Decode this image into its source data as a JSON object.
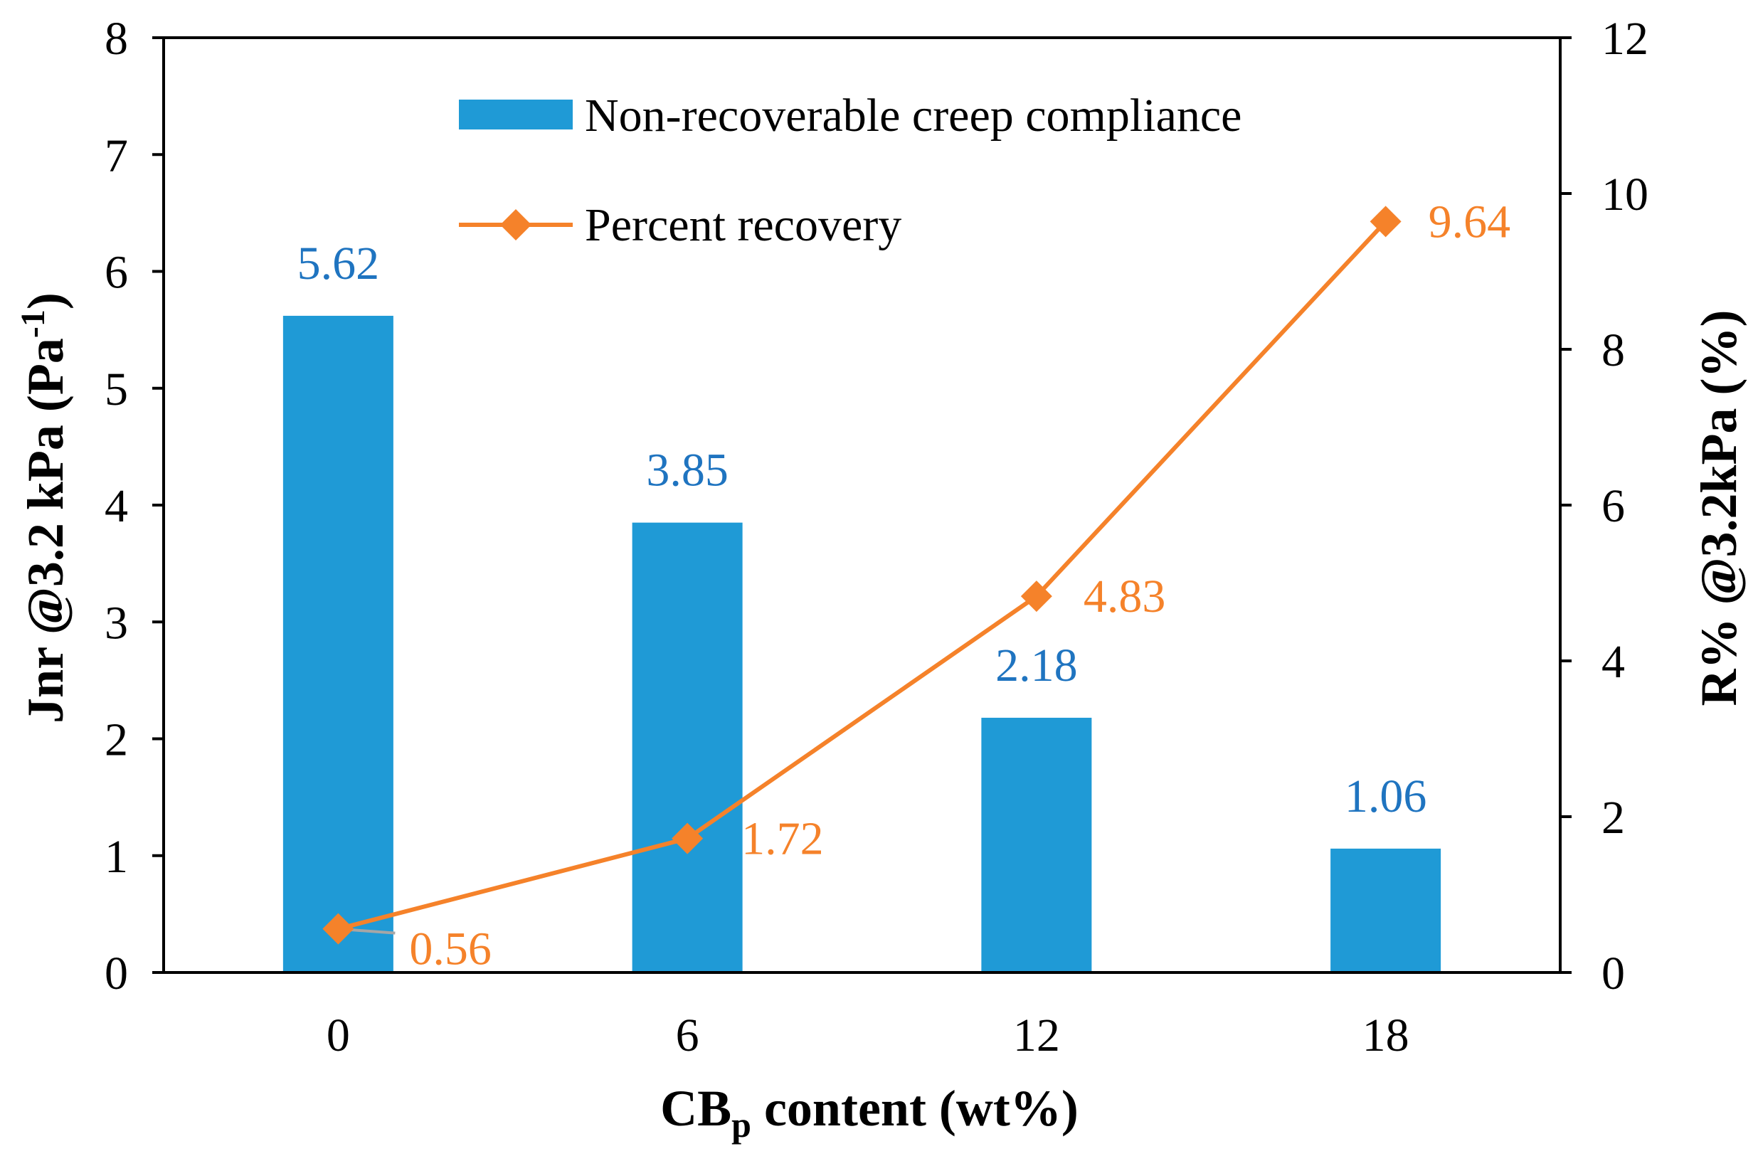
{
  "chart_data": {
    "type": "bar+line",
    "categories": [
      "0",
      "6",
      "12",
      "18"
    ],
    "x_axis": {
      "title_main": "CB",
      "title_sub": "p",
      "title_rest": " content (wt%)"
    },
    "left_axis": {
      "title_main": "Jnr @3.2 kPa (Pa",
      "title_sup": "-1",
      "title_end": ")",
      "min": 0,
      "max": 8,
      "step": 1,
      "ticks": [
        "0",
        "1",
        "2",
        "3",
        "4",
        "5",
        "6",
        "7",
        "8"
      ]
    },
    "right_axis": {
      "title": "R% @3.2kPa (%)",
      "min": 0,
      "max": 12,
      "step": 2,
      "ticks": [
        "0",
        "2",
        "4",
        "6",
        "8",
        "10",
        "12"
      ]
    },
    "series": [
      {
        "name": "Non-recoverable creep compliance",
        "kind": "bar",
        "axis": "left",
        "color": "#1f9ad6",
        "values": [
          5.62,
          3.85,
          2.18,
          1.06
        ],
        "labels": [
          "5.62",
          "3.85",
          "2.18",
          "1.06"
        ],
        "label_color": "#1f74c0"
      },
      {
        "name": "Percent recovery",
        "kind": "line",
        "marker": "diamond",
        "axis": "right",
        "color": "#f5822a",
        "values": [
          0.56,
          1.72,
          4.83,
          9.64
        ],
        "labels": [
          "0.56",
          "1.72",
          "4.83",
          "9.64"
        ],
        "label_color": "#f5822a"
      }
    ],
    "legend_position": "top-center"
  }
}
